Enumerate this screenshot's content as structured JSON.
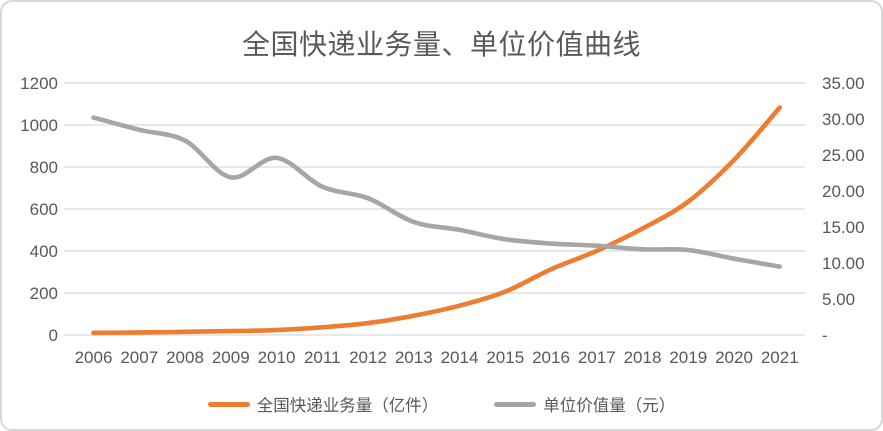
{
  "colors": {
    "series_orange": "#ED7D31",
    "series_gray": "#A6A6A6",
    "gridline": "#D9D9D9",
    "text": "#595959",
    "card_border": "#D8D8D8",
    "background": "#FFFFFF"
  },
  "chart_data": {
    "type": "line",
    "title": "全国快递业务量、单位价值曲线",
    "smoothed": true,
    "grid": true,
    "legend_position": "bottom",
    "x_labels": [
      "2006",
      "2007",
      "2008",
      "2009",
      "2010",
      "2011",
      "2012",
      "2013",
      "2014",
      "2015",
      "2016",
      "2017",
      "2018",
      "2019",
      "2020",
      "2021"
    ],
    "left_axis": {
      "min": 0,
      "max": 1200,
      "step": 200,
      "tick_labels": [
        "0",
        "200",
        "400",
        "600",
        "800",
        "1000",
        "1200"
      ]
    },
    "right_axis": {
      "min": 0,
      "max": 35,
      "step": 5,
      "tick_labels": [
        "-",
        "5.00",
        "10.00",
        "15.00",
        "20.00",
        "25.00",
        "30.00",
        "35.00"
      ]
    },
    "series": [
      {
        "id": "volume",
        "name": "全国快递业务量（亿件）",
        "axis": "left",
        "color": "#ED7D31",
        "values": [
          10.6,
          12.0,
          15.1,
          18.6,
          23.4,
          36.7,
          56.9,
          91.9,
          139.6,
          206.7,
          312.8,
          400.6,
          507.1,
          635.2,
          833.6,
          1083.0
        ]
      },
      {
        "id": "unit-value",
        "name": "单位价值量（元）",
        "axis": "right",
        "color": "#A6A6A6",
        "values": [
          30.2,
          28.5,
          27.0,
          21.9,
          24.6,
          20.6,
          19.0,
          15.7,
          14.6,
          13.3,
          12.7,
          12.4,
          11.9,
          11.8,
          10.6,
          9.5
        ]
      }
    ]
  }
}
